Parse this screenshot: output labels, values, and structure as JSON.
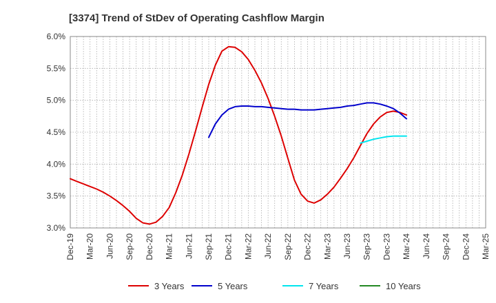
{
  "chart_data": {
    "type": "line",
    "title": "[3374]  Trend of StDev of Operating Cashflow Margin",
    "xlabel": "",
    "ylabel": "",
    "ylim": [
      3.0,
      6.0
    ],
    "y_ticks": [
      "3.0%",
      "3.5%",
      "4.0%",
      "4.5%",
      "5.0%",
      "5.5%",
      "6.0%"
    ],
    "x_ticks": [
      "Dec-19",
      "Mar-20",
      "Jun-20",
      "Sep-20",
      "Dec-20",
      "Mar-21",
      "Jun-21",
      "Sep-21",
      "Dec-21",
      "Mar-22",
      "Jun-22",
      "Sep-22",
      "Dec-22",
      "Mar-23",
      "Jun-23",
      "Sep-23",
      "Dec-23",
      "Mar-24",
      "Jun-24",
      "Sep-24",
      "Dec-24",
      "Mar-25"
    ],
    "grid": true,
    "legend_position": "bottom",
    "series": [
      {
        "name": "3 Years",
        "color": "#dd0000",
        "points": [
          [
            "Dec-19",
            3.77
          ],
          [
            "Jan-20",
            3.73
          ],
          [
            "Feb-20",
            3.69
          ],
          [
            "Mar-20",
            3.65
          ],
          [
            "Apr-20",
            3.61
          ],
          [
            "May-20",
            3.56
          ],
          [
            "Jun-20",
            3.5
          ],
          [
            "Jul-20",
            3.43
          ],
          [
            "Aug-20",
            3.35
          ],
          [
            "Sep-20",
            3.26
          ],
          [
            "Oct-20",
            3.15
          ],
          [
            "Nov-20",
            3.08
          ],
          [
            "Dec-20",
            3.06
          ],
          [
            "Jan-21",
            3.09
          ],
          [
            "Feb-21",
            3.18
          ],
          [
            "Mar-21",
            3.32
          ],
          [
            "Apr-21",
            3.55
          ],
          [
            "May-21",
            3.83
          ],
          [
            "Jun-21",
            4.16
          ],
          [
            "Jul-21",
            4.52
          ],
          [
            "Aug-21",
            4.89
          ],
          [
            "Sep-21",
            5.25
          ],
          [
            "Oct-21",
            5.55
          ],
          [
            "Nov-21",
            5.77
          ],
          [
            "Dec-21",
            5.84
          ],
          [
            "Jan-22",
            5.83
          ],
          [
            "Feb-22",
            5.76
          ],
          [
            "Mar-22",
            5.64
          ],
          [
            "Apr-22",
            5.47
          ],
          [
            "May-22",
            5.27
          ],
          [
            "Jun-22",
            5.03
          ],
          [
            "Jul-22",
            4.75
          ],
          [
            "Aug-22",
            4.44
          ],
          [
            "Sep-22",
            4.09
          ],
          [
            "Oct-22",
            3.75
          ],
          [
            "Nov-22",
            3.53
          ],
          [
            "Dec-22",
            3.42
          ],
          [
            "Jan-23",
            3.39
          ],
          [
            "Feb-23",
            3.44
          ],
          [
            "Mar-23",
            3.53
          ],
          [
            "Apr-23",
            3.64
          ],
          [
            "May-23",
            3.78
          ],
          [
            "Jun-23",
            3.93
          ],
          [
            "Jul-23",
            4.1
          ],
          [
            "Aug-23",
            4.29
          ],
          [
            "Sep-23",
            4.48
          ],
          [
            "Oct-23",
            4.63
          ],
          [
            "Nov-23",
            4.74
          ],
          [
            "Dec-23",
            4.81
          ],
          [
            "Jan-24",
            4.83
          ],
          [
            "Feb-24",
            4.81
          ],
          [
            "Mar-24",
            4.77
          ]
        ]
      },
      {
        "name": "5 Years",
        "color": "#0000cc",
        "points": [
          [
            "Sep-21",
            4.42
          ],
          [
            "Oct-21",
            4.63
          ],
          [
            "Nov-21",
            4.77
          ],
          [
            "Dec-21",
            4.86
          ],
          [
            "Jan-22",
            4.9
          ],
          [
            "Feb-22",
            4.91
          ],
          [
            "Mar-22",
            4.91
          ],
          [
            "Apr-22",
            4.9
          ],
          [
            "May-22",
            4.9
          ],
          [
            "Jun-22",
            4.89
          ],
          [
            "Jul-22",
            4.88
          ],
          [
            "Aug-22",
            4.87
          ],
          [
            "Sep-22",
            4.86
          ],
          [
            "Oct-22",
            4.86
          ],
          [
            "Nov-22",
            4.85
          ],
          [
            "Dec-22",
            4.85
          ],
          [
            "Jan-23",
            4.85
          ],
          [
            "Feb-23",
            4.86
          ],
          [
            "Mar-23",
            4.87
          ],
          [
            "Apr-23",
            4.88
          ],
          [
            "May-23",
            4.89
          ],
          [
            "Jun-23",
            4.91
          ],
          [
            "Jul-23",
            4.92
          ],
          [
            "Aug-23",
            4.94
          ],
          [
            "Sep-23",
            4.96
          ],
          [
            "Oct-23",
            4.96
          ],
          [
            "Nov-23",
            4.94
          ],
          [
            "Dec-23",
            4.91
          ],
          [
            "Jan-24",
            4.87
          ],
          [
            "Feb-24",
            4.8
          ],
          [
            "Mar-24",
            4.71
          ]
        ]
      },
      {
        "name": "7 Years",
        "color": "#00e5ee",
        "points": [
          [
            "Aug-23",
            4.33
          ],
          [
            "Sep-23",
            4.36
          ],
          [
            "Oct-23",
            4.39
          ],
          [
            "Nov-23",
            4.41
          ],
          [
            "Dec-23",
            4.43
          ],
          [
            "Jan-24",
            4.44
          ],
          [
            "Feb-24",
            4.44
          ],
          [
            "Mar-24",
            4.44
          ]
        ]
      },
      {
        "name": "10 Years",
        "color": "#228822",
        "points": []
      }
    ]
  }
}
